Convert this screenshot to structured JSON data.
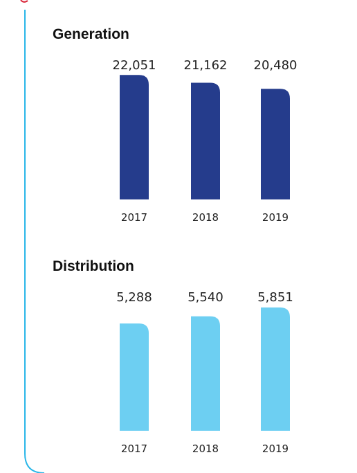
{
  "chart_data": [
    {
      "type": "bar",
      "title": "Generation",
      "categories": [
        "2017",
        "2018",
        "2019"
      ],
      "values": [
        22051,
        21162,
        20480
      ],
      "value_labels": [
        "22,051",
        "21,162",
        "20,480"
      ],
      "color": "#253c8c",
      "ylim": [
        7900,
        22700
      ]
    },
    {
      "type": "bar",
      "title": "Distribution",
      "categories": [
        "2017",
        "2018",
        "2019"
      ],
      "values": [
        5288,
        5540,
        5851
      ],
      "value_labels": [
        "5,288",
        "5,540",
        "5,851"
      ],
      "color": "#6dcff2",
      "ylim": [
        1500,
        5950
      ]
    }
  ]
}
